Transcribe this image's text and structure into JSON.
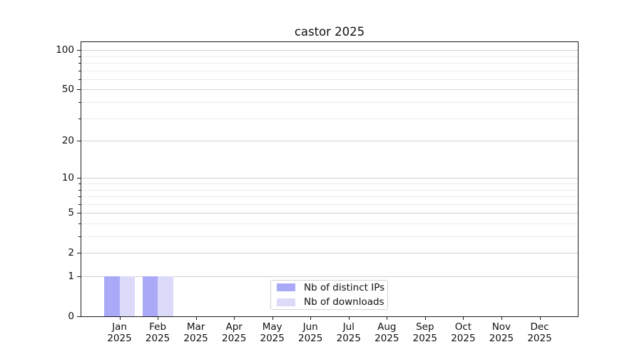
{
  "window": {
    "background": "#ffffff"
  },
  "chart_data": {
    "type": "bar",
    "title": "castor 2025",
    "categories": [
      "Jan 2025",
      "Feb 2025",
      "Mar 2025",
      "Apr 2025",
      "May 2025",
      "Jun 2025",
      "Jul 2025",
      "Aug 2025",
      "Sep 2025",
      "Oct 2025",
      "Nov 2025",
      "Dec 2025"
    ],
    "series": [
      {
        "name": "Nb of distinct IPs",
        "color": "#a9a9f7",
        "values": [
          1,
          1,
          0,
          0,
          0,
          0,
          0,
          0,
          0,
          0,
          0,
          0
        ]
      },
      {
        "name": "Nb of downloads",
        "color": "#dbdaf9",
        "values": [
          1,
          1,
          0,
          0,
          0,
          0,
          0,
          0,
          0,
          0,
          0,
          0
        ]
      }
    ],
    "xlabel": "",
    "ylabel": "",
    "y_axis": {
      "scale": "log1p",
      "major_ticks": [
        0,
        1,
        2,
        5,
        10,
        20,
        50,
        100
      ],
      "minor_ticks": [
        3,
        4,
        6,
        7,
        8,
        9,
        30,
        40,
        60,
        70,
        80,
        90
      ],
      "ylim": [
        0,
        116
      ]
    },
    "grid": {
      "enabled": true,
      "major_color": "#d2d2d2",
      "minor_color": "#ebebeb"
    },
    "legend": {
      "position": "lower center"
    },
    "axis_color": "#1a1a1a"
  }
}
